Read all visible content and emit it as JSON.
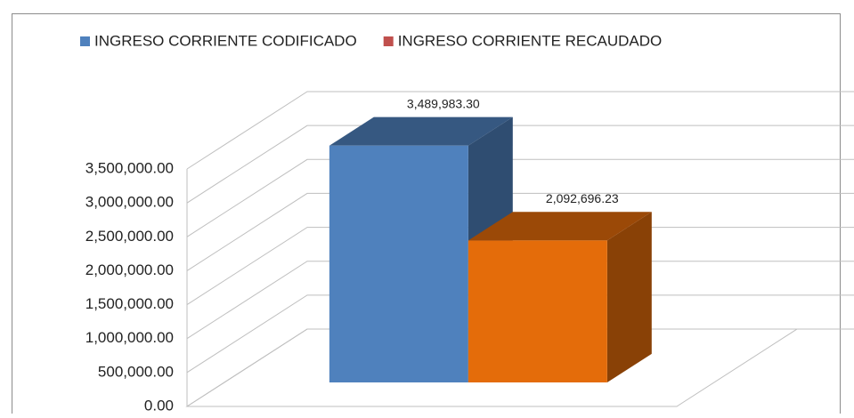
{
  "chart_data": {
    "type": "bar3d",
    "series": [
      {
        "name": "INGRESO CORRIENTE CODIFICADO",
        "color": "#4f81bd",
        "legend_color": "#4f81bd",
        "values": [
          3489983.3
        ],
        "value_labels": [
          "3,489,983.30"
        ]
      },
      {
        "name": "INGRESO CORRIENTE RECAUDADO",
        "color": "#e46c0a",
        "legend_color": "#c0504d",
        "values": [
          2092696.23
        ],
        "value_labels": [
          "2,092,696.23"
        ]
      }
    ],
    "ylim": [
      0,
      3500000
    ],
    "yticks": [
      {
        "value": 0,
        "label": "0.00"
      },
      {
        "value": 500000,
        "label": "500,000.00"
      },
      {
        "value": 1000000,
        "label": "1,000,000.00"
      },
      {
        "value": 1500000,
        "label": "1,500,000.00"
      },
      {
        "value": 2000000,
        "label": "2,000,000.00"
      },
      {
        "value": 2500000,
        "label": "2,500,000.00"
      },
      {
        "value": 3000000,
        "label": "3,000,000.00"
      },
      {
        "value": 3500000,
        "label": "3,500,000.00"
      }
    ],
    "grid": true,
    "legend": "top"
  }
}
